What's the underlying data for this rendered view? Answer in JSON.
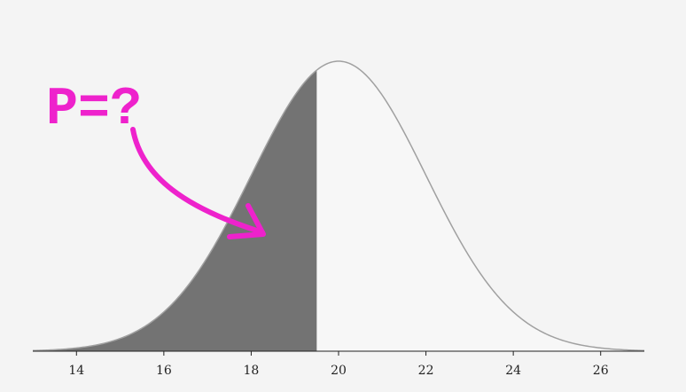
{
  "chart_data": {
    "type": "area",
    "distribution": "normal",
    "mean": 20,
    "sd": 2,
    "shaded_upper_bound": 19.5,
    "xlim": [
      13,
      27
    ],
    "x_ticks": [
      14,
      16,
      18,
      20,
      22,
      24,
      26
    ],
    "x_tick_labels": [
      "14",
      "16",
      "18",
      "20",
      "22",
      "24",
      "26"
    ],
    "grid": false,
    "colors": {
      "background": "#f4f4f4",
      "shaded_region": "#737373",
      "curve_stroke": "#a0a0a0",
      "unshaded_fill": "#f7f7f7",
      "annotation": "#ee22cc"
    },
    "annotation": {
      "text": "P=?",
      "arrow_direction": "down-right"
    }
  }
}
